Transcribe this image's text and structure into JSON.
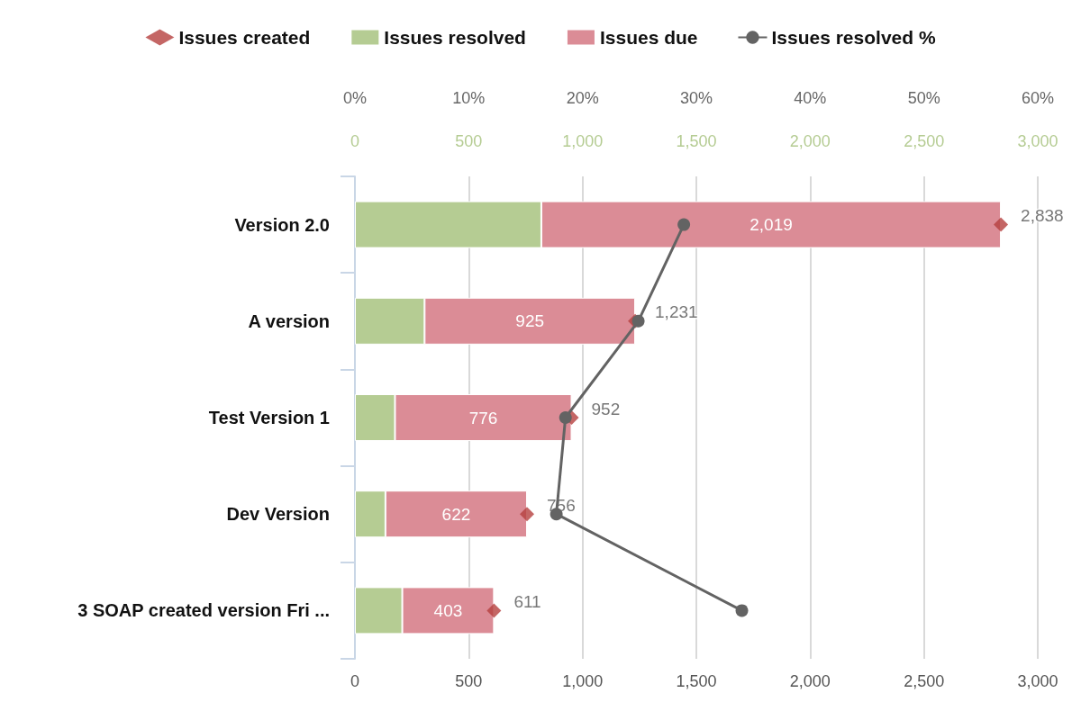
{
  "chart_data": {
    "type": "bar",
    "orientation": "horizontal",
    "stacked": true,
    "categories": [
      "Version 2.0",
      "A version",
      "Test Version 1",
      "Dev Version",
      "3 SOAP created version Fri ..."
    ],
    "series": [
      {
        "name": "Issues created",
        "type": "scatter",
        "marker": "diamond",
        "color": "#b5403e",
        "values": [
          2838,
          1231,
          952,
          756,
          611
        ],
        "value_labels": [
          "2,838",
          "1,231",
          "952",
          "756",
          "611"
        ]
      },
      {
        "name": "Issues resolved",
        "color": "#b5cc93",
        "values": [
          819,
          306,
          176,
          134,
          208
        ]
      },
      {
        "name": "Issues due",
        "color": "#db8c96",
        "values": [
          2019,
          925,
          776,
          622,
          403
        ],
        "value_labels": [
          "2,019",
          "925",
          "776",
          "622",
          "403"
        ]
      },
      {
        "name": "Issues resolved %",
        "type": "line",
        "axis": "x2",
        "marker": "circle",
        "line_style": "solid",
        "color": "#636363",
        "values": [
          28.9,
          24.9,
          18.5,
          17.7,
          34.0
        ]
      }
    ],
    "xlim": [
      0,
      3000
    ],
    "xticks": [
      {
        "value": 0,
        "label": "0"
      },
      {
        "value": 500,
        "label": "500"
      },
      {
        "value": 1000,
        "label": "1,000"
      },
      {
        "value": 1500,
        "label": "1,500"
      },
      {
        "value": 2000,
        "label": "2,000"
      },
      {
        "value": 2500,
        "label": "2,500"
      },
      {
        "value": 3000,
        "label": "3,000"
      }
    ],
    "x2lim": [
      0,
      60
    ],
    "x2ticks": [
      {
        "value": 0,
        "label": "0%"
      },
      {
        "value": 10,
        "label": "10%"
      },
      {
        "value": 20,
        "label": "20%"
      },
      {
        "value": 30,
        "label": "30%"
      },
      {
        "value": 40,
        "label": "40%"
      },
      {
        "value": 50,
        "label": "50%"
      },
      {
        "value": 60,
        "label": "60%"
      }
    ],
    "grid": "x",
    "legend": "top"
  }
}
